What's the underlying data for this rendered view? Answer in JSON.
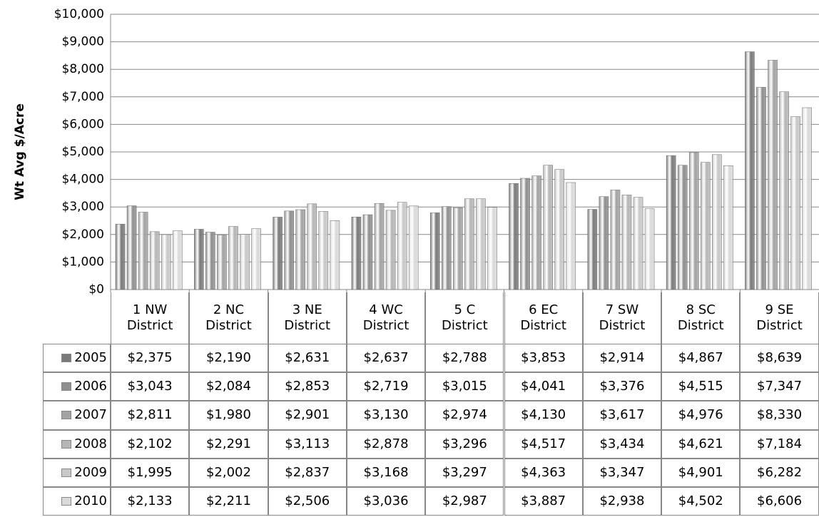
{
  "chart_data": {
    "type": "bar",
    "y_label": "Wt Avg $/Acre",
    "categories": [
      "1 NW District",
      "2 NC District",
      "3 NE District",
      "4 WC District",
      "5 C District",
      "6 EC District",
      "7 SW District",
      "8 SC District",
      "9 SE District"
    ],
    "series": [
      {
        "name": "2005",
        "color": "#7a7a7a",
        "values": [
          2375,
          2190,
          2631,
          2637,
          2788,
          3853,
          2914,
          4867,
          8639
        ],
        "value_labels": [
          "$2,375",
          "$2,190",
          "$2,631",
          "$2,637",
          "$2,788",
          "$3,853",
          "$2,914",
          "$4,867",
          "$8,639"
        ]
      },
      {
        "name": "2006",
        "color": "#8f8f8f",
        "values": [
          3043,
          2084,
          2853,
          2719,
          3015,
          4041,
          3376,
          4515,
          7347
        ],
        "value_labels": [
          "$3,043",
          "$2,084",
          "$2,853",
          "$2,719",
          "$3,015",
          "$4,041",
          "$3,376",
          "$4,515",
          "$7,347"
        ]
      },
      {
        "name": "2007",
        "color": "#a3a3a3",
        "values": [
          2811,
          1980,
          2901,
          3130,
          2974,
          4130,
          3617,
          4976,
          8330
        ],
        "value_labels": [
          "$2,811",
          "$1,980",
          "$2,901",
          "$3,130",
          "$2,974",
          "$4,130",
          "$3,617",
          "$4,976",
          "$8,330"
        ]
      },
      {
        "name": "2008",
        "color": "#b6b6b6",
        "values": [
          2102,
          2291,
          3113,
          2878,
          3296,
          4517,
          3434,
          4621,
          7184
        ],
        "value_labels": [
          "$2,102",
          "$2,291",
          "$3,113",
          "$2,878",
          "$3,296",
          "$4,517",
          "$3,434",
          "$4,621",
          "$7,184"
        ]
      },
      {
        "name": "2009",
        "color": "#c8c8c8",
        "values": [
          1995,
          2002,
          2837,
          3168,
          3297,
          4363,
          3347,
          4901,
          6282
        ],
        "value_labels": [
          "$1,995",
          "$2,002",
          "$2,837",
          "$3,168",
          "$3,297",
          "$4,363",
          "$3,347",
          "$4,901",
          "$6,282"
        ]
      },
      {
        "name": "2010",
        "color": "#d9d9d9",
        "values": [
          2133,
          2211,
          2506,
          3036,
          2987,
          3887,
          2938,
          4502,
          6606
        ],
        "value_labels": [
          "$2,133",
          "$2,211",
          "$2,506",
          "$3,036",
          "$2,987",
          "$3,887",
          "$2,938",
          "$4,502",
          "$6,606"
        ]
      }
    ],
    "ylim": [
      0,
      10000
    ],
    "yticks": [
      {
        "value": 0,
        "label": "$0"
      },
      {
        "value": 1000,
        "label": "$1,000"
      },
      {
        "value": 2000,
        "label": "$2,000"
      },
      {
        "value": 3000,
        "label": "$3,000"
      },
      {
        "value": 4000,
        "label": "$4,000"
      },
      {
        "value": 5000,
        "label": "$5,000"
      },
      {
        "value": 6000,
        "label": "$6,000"
      },
      {
        "value": 7000,
        "label": "$7,000"
      },
      {
        "value": 8000,
        "label": "$8,000"
      },
      {
        "value": 9000,
        "label": "$9,000"
      },
      {
        "value": 10000,
        "label": "$10,000"
      }
    ],
    "grid": true
  }
}
